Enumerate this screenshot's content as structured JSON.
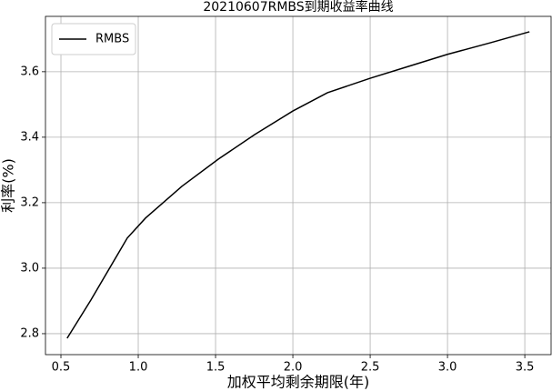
{
  "chart_data": {
    "type": "line",
    "title": "20210607RMBS到期收益率曲线",
    "xlabel": "加权平均剩余期限(年)",
    "ylabel": "利率(%)",
    "x": [
      0.54,
      0.694,
      0.929,
      1.047,
      1.282,
      1.518,
      1.753,
      2.0,
      2.224,
      2.5,
      2.753,
      3.0,
      3.282,
      3.53
    ],
    "series": [
      {
        "name": "RMBS",
        "color": "#000000",
        "values": [
          2.786,
          2.903,
          3.092,
          3.153,
          3.25,
          3.333,
          3.408,
          3.48,
          3.536,
          3.58,
          3.617,
          3.653,
          3.689,
          3.722
        ]
      }
    ],
    "xlim": [
      0.4,
      3.67
    ],
    "ylim": [
      2.736,
      3.769
    ],
    "xticks": [
      0.5,
      1.0,
      1.5,
      2.0,
      2.5,
      3.0,
      3.5
    ],
    "yticks": [
      2.8,
      3.0,
      3.2,
      3.4,
      3.6
    ],
    "grid": true,
    "legend": "upper-left"
  }
}
